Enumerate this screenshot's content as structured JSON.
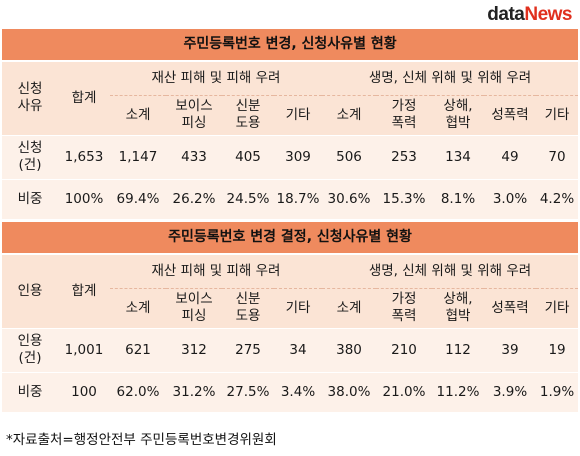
{
  "logo": {
    "prefix": "d",
    "rest": "ata",
    "suffix": "News"
  },
  "table1": {
    "title": "주민등록번호 변경, 신청사유별 현황",
    "col_reason": [
      "신청",
      "사유"
    ],
    "col_total": "합계",
    "group_property": "재산 피해 및 피해 우려",
    "group_life": "생명, 신체 위해 및 위해 우려",
    "sub_subtotal": "소계",
    "sub_voice": [
      "보이스",
      "피싱"
    ],
    "sub_identity": [
      "신분",
      "도용"
    ],
    "sub_etc": "기타",
    "sub_subtotal2": "소계",
    "sub_domestic": [
      "가정",
      "폭력"
    ],
    "sub_injury": [
      "상해,",
      "협박"
    ],
    "sub_sexual": "성폭력",
    "sub_etc2": "기타",
    "row_count": {
      "label": [
        "신청",
        "(건)"
      ],
      "values": [
        "1,653",
        "1,147",
        "433",
        "405",
        "309",
        "506",
        "253",
        "134",
        "49",
        "70"
      ]
    },
    "row_ratio": {
      "label": "비중",
      "values": [
        "100%",
        "69.4%",
        "26.2%",
        "24.5%",
        "18.7%",
        "30.6%",
        "15.3%",
        "8.1%",
        "3.0%",
        "4.2%"
      ]
    }
  },
  "table2": {
    "title": "주민등록번호 변경 결정, 신청사유별 현황",
    "col_reason": "인용",
    "col_total": "합계",
    "group_property": "재산 피해 및 피해 우려",
    "group_life": "생명, 신체 위해 및 위해 우려",
    "sub_subtotal": "소계",
    "sub_voice": [
      "보이스",
      "피싱"
    ],
    "sub_identity": [
      "신분",
      "도용"
    ],
    "sub_etc": "기타",
    "sub_subtotal2": "소계",
    "sub_domestic": [
      "가정",
      "폭력"
    ],
    "sub_injury": [
      "상해,",
      "협박"
    ],
    "sub_sexual": "성폭력",
    "sub_etc2": "기타",
    "row_count": {
      "label": [
        "인용",
        "(건)"
      ],
      "values": [
        "1,001",
        "621",
        "312",
        "275",
        "34",
        "380",
        "210",
        "112",
        "39",
        "19"
      ]
    },
    "row_ratio": {
      "label": "비중",
      "values": [
        "100",
        "62.0%",
        "31.2%",
        "27.5%",
        "3.4%",
        "38.0%",
        "21.0%",
        "11.2%",
        "3.9%",
        "1.9%"
      ]
    }
  },
  "footer": "*자료출처=행정안전부 주민등록번호변경위원회",
  "colors": {
    "title_bg": "#ef8a5e",
    "header_bg": "#fbe4d5",
    "row_bg": "#fdf1e9",
    "logo_accent": "#e0301e"
  }
}
